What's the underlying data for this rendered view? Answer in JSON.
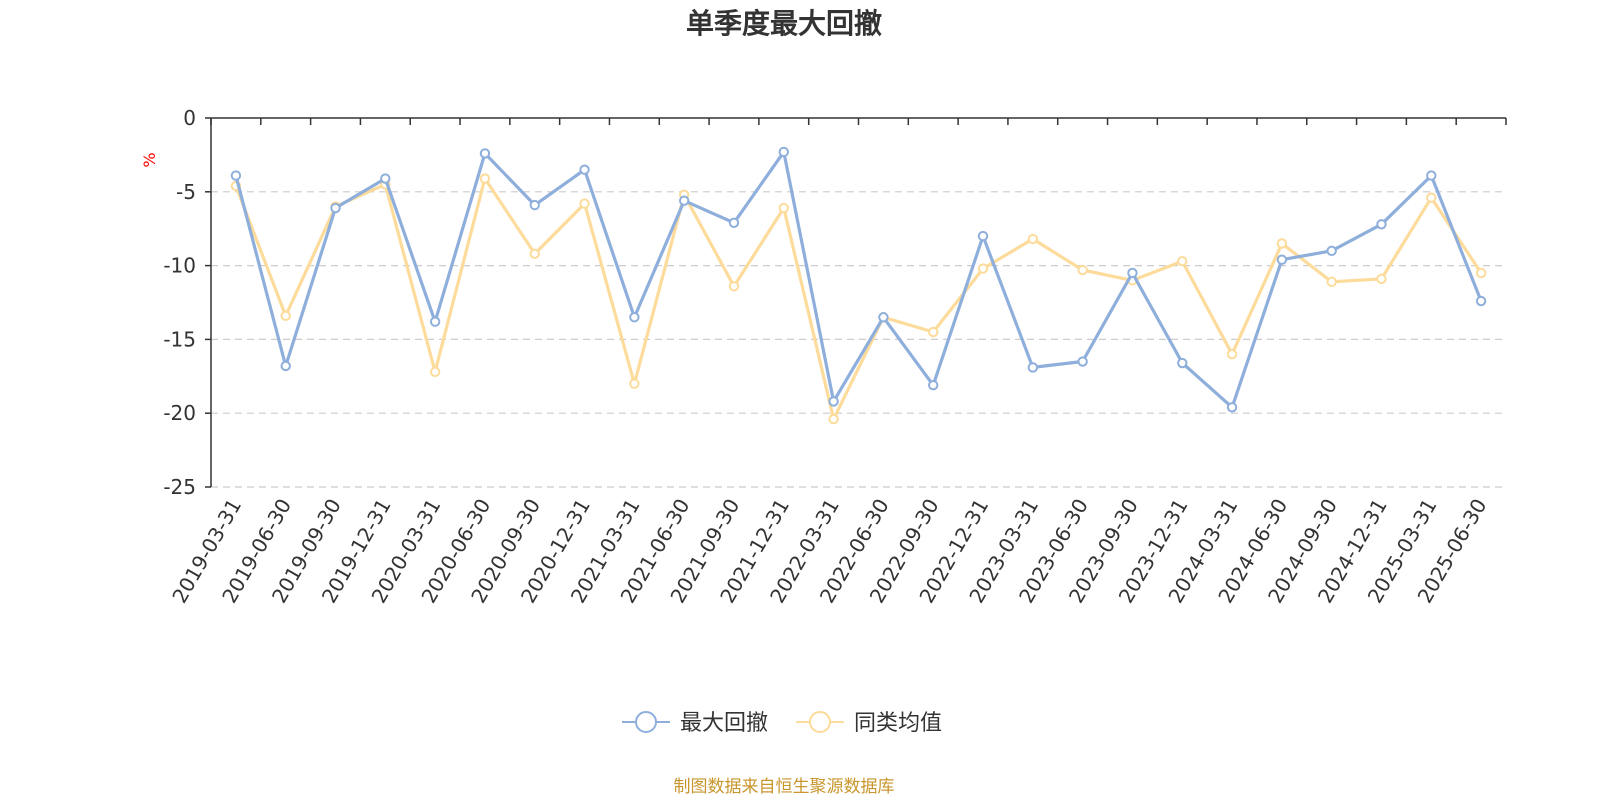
{
  "chart_data": {
    "type": "line",
    "title": "单季度最大回撤",
    "ylabel": "%",
    "ylim": [
      -25,
      0
    ],
    "yticks": [
      0,
      -5,
      -10,
      -15,
      -20,
      -25
    ],
    "grid": true,
    "legend_position": "bottom",
    "categories": [
      "2019-03-31",
      "2019-06-30",
      "2019-09-30",
      "2019-12-31",
      "2020-03-31",
      "2020-06-30",
      "2020-09-30",
      "2020-12-31",
      "2021-03-31",
      "2021-06-30",
      "2021-09-30",
      "2021-12-31",
      "2022-03-31",
      "2022-06-30",
      "2022-09-30",
      "2022-12-31",
      "2023-03-31",
      "2023-06-30",
      "2023-09-30",
      "2023-12-31",
      "2024-03-31",
      "2024-06-30",
      "2024-09-30",
      "2024-12-31",
      "2025-03-31",
      "2025-06-30"
    ],
    "series": [
      {
        "name": "最大回撤",
        "color": "#8eaedb",
        "values": [
          -3.9,
          -16.8,
          -6.1,
          -4.1,
          -13.8,
          -2.4,
          -5.9,
          -3.5,
          -13.5,
          -5.6,
          -7.1,
          -2.3,
          -19.2,
          -13.5,
          -18.1,
          -8.0,
          -16.9,
          -16.5,
          -10.5,
          -16.6,
          -19.6,
          -9.6,
          -9.0,
          -7.2,
          -3.9,
          -12.4
        ]
      },
      {
        "name": "同类均值",
        "color": "#fcdb9b",
        "values": [
          -4.6,
          -13.4,
          -6.0,
          -4.5,
          -17.2,
          -4.1,
          -9.2,
          -5.8,
          -18.0,
          -5.2,
          -11.4,
          -6.1,
          -20.4,
          -13.5,
          -14.5,
          -10.2,
          -8.2,
          -10.3,
          -11.0,
          -9.7,
          -16.0,
          -8.5,
          -11.1,
          -10.9,
          -5.4,
          -10.5
        ]
      }
    ]
  },
  "footer": {
    "source": "制图数据来自恒生聚源数据库"
  }
}
